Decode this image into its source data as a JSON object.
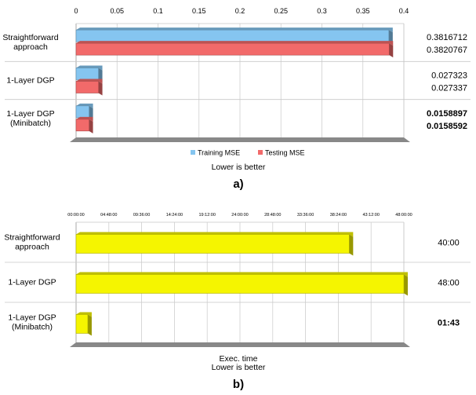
{
  "chart_data": [
    {
      "type": "bar",
      "orientation": "horizontal",
      "panel_label": "a)",
      "categories": [
        "Straightforward\napproach",
        "1-Layer DGP",
        "1-Layer DGP\n(Minibatch)"
      ],
      "xlim": [
        0,
        0.4
      ],
      "x_ticks": [
        "0",
        "0.05",
        "0.1",
        "0.15",
        "0.2",
        "0.25",
        "0.3",
        "0.35",
        "0.4"
      ],
      "series": [
        {
          "name": "Training MSE",
          "color": "#85c5f0",
          "values": [
            0.3816712,
            0.027323,
            0.0158897
          ]
        },
        {
          "name": "Testing MSE",
          "color": "#f26a6a",
          "values": [
            0.3820767,
            0.027337,
            0.0158592
          ]
        }
      ],
      "value_labels": [
        [
          "0.3816712",
          "0.3820767"
        ],
        [
          "0.027323",
          "0.027337"
        ],
        [
          "0.0158897",
          "0.0158592"
        ]
      ],
      "bold_labels_category": 2,
      "note": "Lower is better",
      "legend_position": "bottom",
      "grid": true
    },
    {
      "type": "bar",
      "orientation": "horizontal",
      "panel_label": "b)",
      "categories": [
        "Straightforward\napproach",
        "1-Layer DGP",
        "1-Layer DGP\n(Minibatch)"
      ],
      "xlim_minutes": [
        0,
        2880
      ],
      "x_ticks": [
        "00:00:00",
        "04:48:00",
        "09:36:00",
        "14:24:00",
        "19:12:00",
        "24:00:00",
        "28:48:00",
        "33:36:00",
        "38:24:00",
        "43:12:00",
        "48:00:00"
      ],
      "series": [
        {
          "name": "Exec. time",
          "color": "#f5f500",
          "values_minutes": [
            2400,
            2880,
            103
          ]
        }
      ],
      "value_labels": [
        "40:00",
        "48:00",
        "01:43"
      ],
      "bold_labels_category": 2,
      "xlabel": "Exec. time",
      "note": "Lower is better",
      "grid": true
    }
  ]
}
